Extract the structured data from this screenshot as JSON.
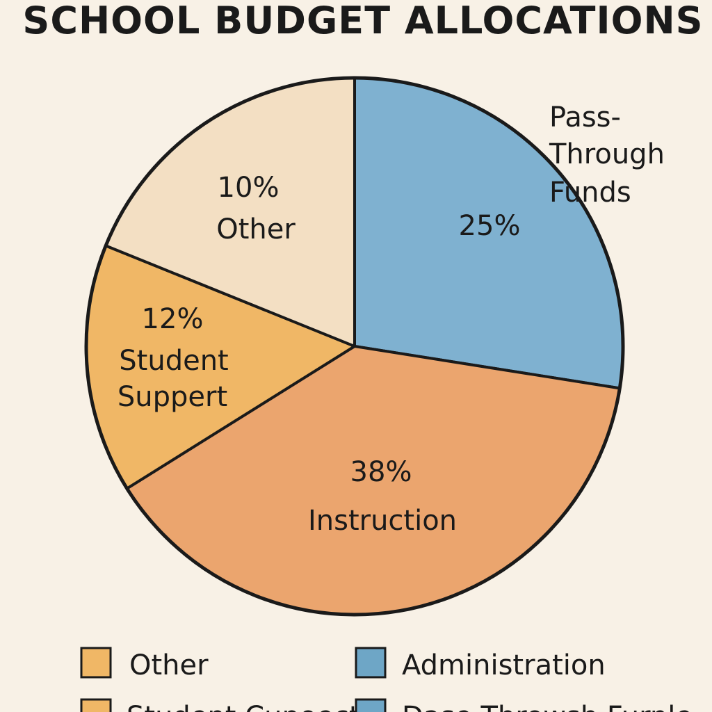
{
  "chart_data": {
    "type": "pie",
    "title": "SCHOOL BUDGET ALLOCATIONS",
    "slices": [
      {
        "key": "pass-through",
        "value": 25,
        "color": "#7fb1d0",
        "label_lines": [
          "25%"
        ]
      },
      {
        "key": "instruction",
        "value": 38,
        "color": "#eba56e",
        "label_lines": [
          "38%",
          "Instruction"
        ]
      },
      {
        "key": "student-support",
        "value": 12,
        "color": "#f0b766",
        "label_lines": [
          "12%",
          "Student",
          "Suppert"
        ]
      },
      {
        "key": "other",
        "value": 10,
        "color": "#f3dfc3",
        "label_lines": [
          "10%",
          "Other"
        ]
      }
    ],
    "callout_lines": [
      "Pass-",
      "Through",
      "Funds"
    ],
    "legend": [
      {
        "label": "Other",
        "color": "#f0b766"
      },
      {
        "label": "Administration",
        "color": "#6ea6c6"
      },
      {
        "label": "Student Cupoect",
        "color": "#f0b766"
      },
      {
        "label": "Dase Throwsh Furnle",
        "color": "#6ea6c6"
      }
    ],
    "legend_placement": "bottom"
  }
}
